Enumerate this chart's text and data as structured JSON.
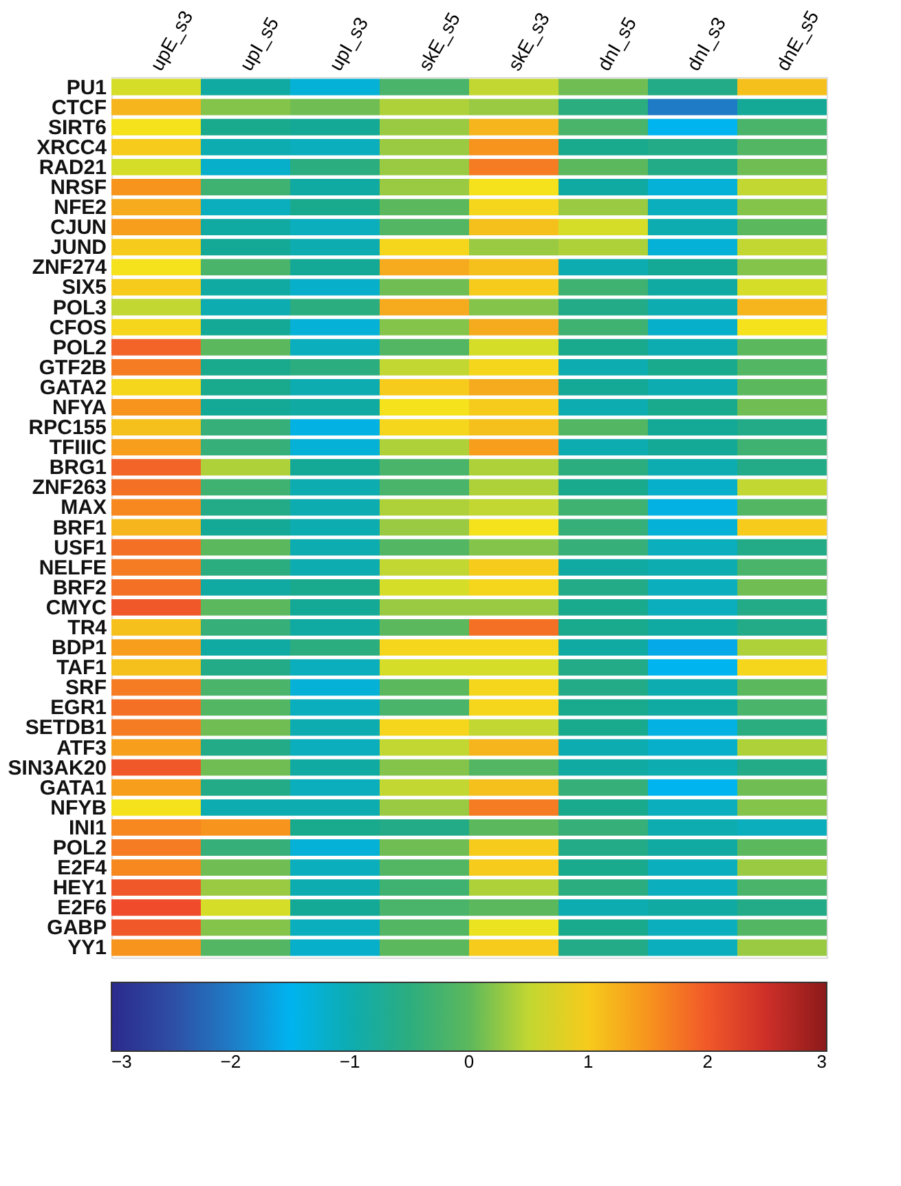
{
  "chart_data": {
    "type": "heatmap",
    "categories": [
      "upE_s3",
      "upI_s5",
      "upI_s3",
      "skE_s5",
      "skE_s3",
      "dnI_s5",
      "dnI_s3",
      "dnE_s5"
    ],
    "y_categories": [
      "PU1",
      "CTCF",
      "SIRT6",
      "XRCC4",
      "RAD21",
      "NRSF",
      "NFE2",
      "CJUN",
      "JUND",
      "ZNF274",
      "SIX5",
      "POL3",
      "CFOS",
      "POL2",
      "GTF2B",
      "GATA2",
      "NFYA",
      "RPC155",
      "TFIIIC",
      "BRG1",
      "ZNF263",
      "MAX",
      "BRF1",
      "USF1",
      "NELFE",
      "BRF2",
      "CMYC",
      "TR4",
      "BDP1",
      "TAF1",
      "SRF",
      "EGR1",
      "SETDB1",
      "ATF3",
      "SIN3AK20",
      "GATA1",
      "NFYB",
      "INI1",
      "POL2",
      "E2F4",
      "HEY1",
      "E2F6",
      "GABP",
      "YY1"
    ],
    "cells": [
      [
        0.6,
        -0.9,
        -1.3,
        -0.2,
        0.5,
        0.1,
        -0.6,
        1.1
      ],
      [
        1.2,
        0.2,
        0.1,
        0.4,
        0.3,
        -0.5,
        -2.0,
        -0.8
      ],
      [
        0.8,
        -0.7,
        -0.8,
        0.3,
        1.2,
        -0.2,
        -1.5,
        -0.2
      ],
      [
        1.0,
        -1.0,
        -1.1,
        0.3,
        1.5,
        -0.7,
        -0.6,
        -0.1
      ],
      [
        0.6,
        -1.2,
        -0.5,
        0.3,
        1.7,
        0.0,
        -0.6,
        0.1
      ],
      [
        1.5,
        -0.3,
        -0.9,
        0.3,
        0.8,
        -0.9,
        -1.3,
        0.5
      ],
      [
        1.3,
        -1.1,
        -0.7,
        0.0,
        0.9,
        0.3,
        -1.1,
        0.2
      ],
      [
        1.4,
        -0.9,
        -1.1,
        -0.1,
        1.1,
        0.6,
        -1.0,
        0.0
      ],
      [
        1.0,
        -0.8,
        -1.0,
        0.9,
        0.3,
        0.4,
        -1.3,
        0.5
      ],
      [
        0.8,
        -0.2,
        -0.8,
        1.3,
        1.1,
        -1.0,
        -0.8,
        0.2
      ],
      [
        1.0,
        -0.9,
        -1.2,
        0.1,
        1.0,
        -0.3,
        -0.9,
        0.6
      ],
      [
        0.5,
        -1.0,
        -0.5,
        1.3,
        0.2,
        -0.6,
        -1.0,
        1.2
      ],
      [
        0.9,
        -0.8,
        -1.3,
        0.2,
        1.3,
        -0.3,
        -1.2,
        0.8
      ],
      [
        1.9,
        0.0,
        -1.1,
        -0.1,
        0.6,
        -0.7,
        -1.0,
        0.0
      ],
      [
        1.7,
        -0.7,
        -0.5,
        0.5,
        0.9,
        -1.0,
        -0.7,
        -0.1
      ],
      [
        0.9,
        -0.7,
        -1.0,
        1.0,
        1.3,
        -0.8,
        -1.0,
        0.0
      ],
      [
        1.5,
        -0.8,
        -0.9,
        0.8,
        1.0,
        -1.0,
        -0.7,
        0.1
      ],
      [
        1.1,
        -0.4,
        -1.4,
        0.9,
        1.1,
        -0.1,
        -0.8,
        -0.6
      ],
      [
        1.4,
        -0.4,
        -1.3,
        0.4,
        1.4,
        -1.0,
        -0.8,
        -0.3
      ],
      [
        1.9,
        0.4,
        -0.8,
        -0.2,
        0.4,
        -0.5,
        -1.0,
        -0.6
      ],
      [
        1.8,
        -0.3,
        -1.0,
        -0.2,
        0.4,
        -0.7,
        -1.2,
        0.5
      ],
      [
        1.6,
        -0.6,
        -1.0,
        0.4,
        0.5,
        -0.3,
        -1.4,
        -0.1
      ],
      [
        1.2,
        -0.8,
        -1.0,
        0.3,
        0.8,
        -0.4,
        -1.3,
        1.0
      ],
      [
        1.8,
        0.0,
        -1.0,
        -0.1,
        0.2,
        -0.4,
        -1.1,
        -0.6
      ],
      [
        1.7,
        -0.5,
        -1.0,
        0.5,
        1.0,
        -0.9,
        -1.0,
        -0.2
      ],
      [
        1.8,
        -0.9,
        -0.7,
        0.6,
        0.9,
        -0.6,
        -1.1,
        0.1
      ],
      [
        2.0,
        0.0,
        -0.8,
        0.3,
        0.3,
        -0.7,
        -1.1,
        -0.6
      ],
      [
        1.1,
        -0.4,
        -0.9,
        0.0,
        1.8,
        -0.7,
        -0.9,
        -0.6
      ],
      [
        1.4,
        -0.9,
        -0.5,
        0.9,
        0.9,
        -0.9,
        -1.6,
        0.4
      ],
      [
        1.1,
        -0.6,
        -1.1,
        0.6,
        0.6,
        -0.6,
        -1.5,
        0.9
      ],
      [
        1.7,
        -0.2,
        -1.3,
        0.0,
        0.9,
        -0.6,
        -1.0,
        0.0
      ],
      [
        1.8,
        -0.1,
        -1.1,
        -0.2,
        0.9,
        -0.7,
        -0.9,
        -0.2
      ],
      [
        1.7,
        0.1,
        -1.0,
        0.9,
        0.5,
        -0.7,
        -1.4,
        -0.5
      ],
      [
        1.4,
        -0.6,
        -1.1,
        0.5,
        1.2,
        -1.0,
        -1.2,
        0.4
      ],
      [
        2.0,
        0.1,
        -0.9,
        0.2,
        -0.1,
        -0.9,
        -1.0,
        -0.6
      ],
      [
        1.4,
        -0.6,
        -1.1,
        0.5,
        1.1,
        -0.4,
        -1.5,
        0.1
      ],
      [
        0.8,
        -1.0,
        -1.0,
        0.3,
        1.7,
        -0.7,
        -1.1,
        0.2
      ],
      [
        1.6,
        1.5,
        -0.7,
        -0.6,
        0.0,
        -0.4,
        -1.0,
        -1.1
      ],
      [
        1.7,
        -0.4,
        -1.3,
        0.1,
        1.0,
        -0.6,
        -0.9,
        0.0
      ],
      [
        1.6,
        0.1,
        -1.1,
        -0.1,
        1.0,
        -0.7,
        -1.1,
        0.3
      ],
      [
        2.0,
        0.3,
        -1.0,
        -0.3,
        0.4,
        -0.5,
        -1.1,
        -0.2
      ],
      [
        2.1,
        0.6,
        -0.8,
        -0.2,
        0.0,
        -1.0,
        -0.9,
        -0.6
      ],
      [
        2.0,
        0.2,
        -1.1,
        -0.1,
        0.7,
        -0.7,
        -1.1,
        -0.1
      ],
      [
        1.5,
        -0.1,
        -1.2,
        0.0,
        1.0,
        -0.6,
        -1.1,
        0.3
      ]
    ],
    "clim": [
      -3,
      3
    ],
    "cticks": [
      -3,
      -2,
      -1,
      0,
      1,
      2,
      3
    ]
  }
}
